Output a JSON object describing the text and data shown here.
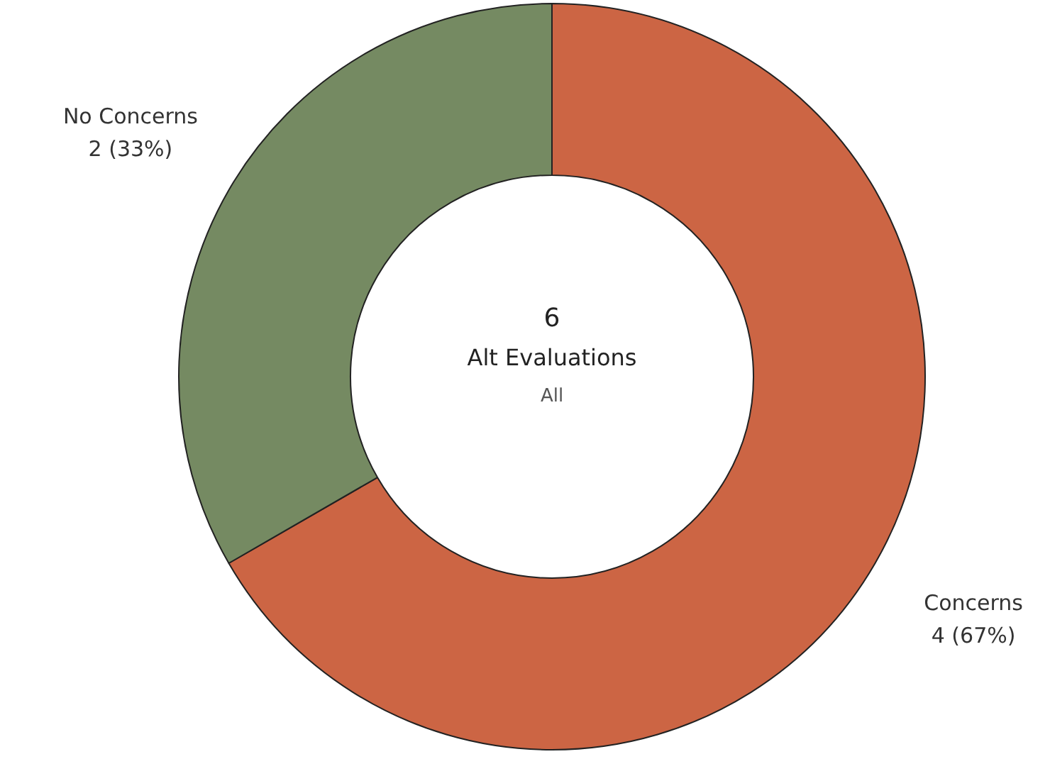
{
  "chart_data": {
    "type": "donut",
    "categories": [
      "Concerns",
      "No Concerns"
    ],
    "values": [
      4,
      2
    ],
    "colors": [
      "#cc6544",
      "#758a62"
    ],
    "value_labels": [
      "4 (67%)",
      "2 (33%)"
    ],
    "annotations": [
      "6",
      "Alt Evaluations",
      "All"
    ]
  }
}
